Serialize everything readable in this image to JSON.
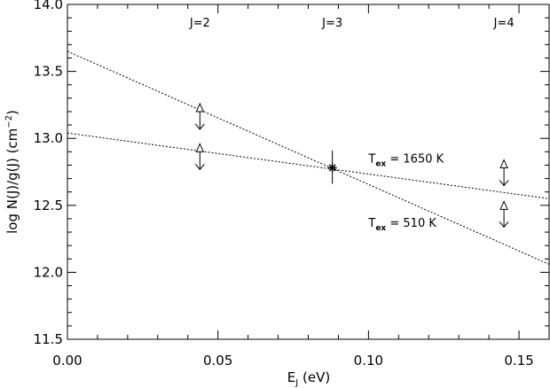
{
  "chart_data": {
    "type": "scatter",
    "xlabel_main": "E",
    "xlabel_sub": "J",
    "xlabel_unit": " (eV)",
    "ylabel_main": "log N(J)/g(J) (cm",
    "ylabel_sup": "−2",
    "ylabel_close": ")",
    "xlim": [
      0.0,
      0.16
    ],
    "ylim": [
      11.5,
      14.0
    ],
    "xticks": [
      0.0,
      0.05,
      0.1,
      0.15
    ],
    "xtick_labels": [
      "0.00",
      "0.05",
      "0.10",
      "0.15"
    ],
    "yticks": [
      11.5,
      12.0,
      12.5,
      13.0,
      13.5,
      14.0
    ],
    "ytick_labels": [
      "11.5",
      "12.0",
      "12.5",
      "13.0",
      "13.5",
      "14.0"
    ],
    "level_labels": [
      {
        "x": 0.044,
        "text": "J=2"
      },
      {
        "x": 0.088,
        "text": "J=3"
      },
      {
        "x": 0.145,
        "text": "J=4"
      }
    ],
    "detection": {
      "x": 0.088,
      "y": 12.78,
      "yerr_low": 12.66,
      "yerr_high": 12.91
    },
    "limits": [
      {
        "x": 0.044,
        "y": 13.2
      },
      {
        "x": 0.044,
        "y": 12.9
      },
      {
        "x": 0.145,
        "y": 12.78
      },
      {
        "x": 0.145,
        "y": 12.47
      }
    ],
    "fit_lines": [
      {
        "x": [
          0.0,
          0.16
        ],
        "y": [
          13.65,
          12.06
        ],
        "label_main": "T",
        "label_sub": "ex",
        "label_value": " = 510 K",
        "label_x": 0.1,
        "label_y": 12.34
      },
      {
        "x": [
          0.0,
          0.16
        ],
        "y": [
          13.04,
          12.55
        ],
        "label_main": "T",
        "label_sub": "ex",
        "label_value": " = 1650 K",
        "label_x": 0.1,
        "label_y": 12.82
      }
    ]
  }
}
